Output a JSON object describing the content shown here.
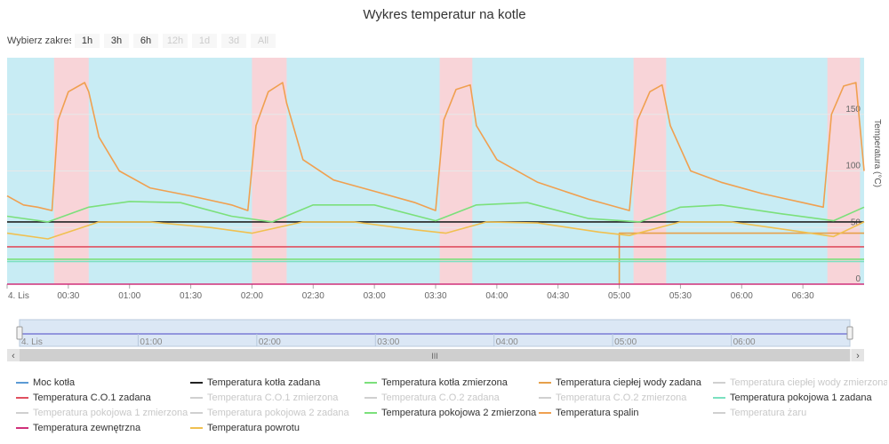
{
  "title": "Wykres temperatur na kotle",
  "range_selector": {
    "label": "Wybierz zakres",
    "buttons": [
      {
        "label": "1h",
        "enabled": true
      },
      {
        "label": "3h",
        "enabled": true
      },
      {
        "label": "6h",
        "enabled": true
      },
      {
        "label": "12h",
        "enabled": false
      },
      {
        "label": "1d",
        "enabled": false
      },
      {
        "label": "3d",
        "enabled": false
      },
      {
        "label": "All",
        "enabled": false
      }
    ]
  },
  "chart_data": {
    "type": "line",
    "x_unit": "time",
    "x_start": "00:00",
    "x_end": "07:00",
    "x_ticks": [
      "4. Lis",
      "00:30",
      "01:00",
      "01:30",
      "02:00",
      "02:30",
      "03:00",
      "03:30",
      "04:00",
      "04:30",
      "05:00",
      "05:30",
      "06:00",
      "06:30"
    ],
    "y_ticks": [
      "0",
      "50",
      "100",
      "150"
    ],
    "ylabel": "Temperatura (°C)",
    "ylim": [
      0,
      200
    ],
    "colors": {
      "plot_bg": "#c8ecf4",
      "band_bg": "#f8d4d8",
      "grid": "#e8e8e8"
    },
    "heating_bands": [
      [
        "00:23",
        "00:40"
      ],
      [
        "02:00",
        "02:17"
      ],
      [
        "03:32",
        "03:48"
      ],
      [
        "05:07",
        "05:23"
      ],
      [
        "06:42",
        "06:58"
      ]
    ],
    "series": [
      {
        "name": "Moc kotła",
        "color": "#5b9bd5",
        "visible": true,
        "points": []
      },
      {
        "name": "Temperatura kotła zadana",
        "color": "#222222",
        "visible": true,
        "points": [
          [
            "00:00",
            55
          ],
          [
            "07:00",
            55
          ]
        ]
      },
      {
        "name": "Temperatura kotła zmierzona",
        "color": "#7be07b",
        "visible": true,
        "points": [
          [
            "00:00",
            60
          ],
          [
            "00:20",
            55
          ],
          [
            "00:40",
            68
          ],
          [
            "01:00",
            73
          ],
          [
            "01:25",
            72
          ],
          [
            "01:50",
            60
          ],
          [
            "02:10",
            55
          ],
          [
            "02:30",
            70
          ],
          [
            "03:00",
            70
          ],
          [
            "03:30",
            56
          ],
          [
            "03:50",
            70
          ],
          [
            "04:15",
            72
          ],
          [
            "04:45",
            58
          ],
          [
            "05:10",
            55
          ],
          [
            "05:30",
            68
          ],
          [
            "05:50",
            70
          ],
          [
            "06:20",
            62
          ],
          [
            "06:45",
            56
          ],
          [
            "07:00",
            68
          ]
        ]
      },
      {
        "name": "Temperatura ciepłej wody zadana",
        "color": "#e6a04a",
        "visible": true,
        "points": [
          [
            "00:00",
            null
          ],
          [
            "05:00",
            null
          ],
          [
            "05:00",
            0
          ],
          [
            "05:00",
            45
          ],
          [
            "07:00",
            45
          ]
        ]
      },
      {
        "name": "Temperatura ciepłej wody zmierzona",
        "color": "#5b9bd5",
        "visible": false,
        "points": []
      },
      {
        "name": "Temperatura C.O.1 zadana",
        "color": "#e05060",
        "visible": true,
        "points": [
          [
            "00:00",
            33
          ],
          [
            "07:00",
            33
          ]
        ]
      },
      {
        "name": "Temperatura C.O.1 zmierzona",
        "color": "#999999",
        "visible": false,
        "points": []
      },
      {
        "name": "Temperatura C.O.2 zadana",
        "color": "#7be07b",
        "visible": false,
        "points": []
      },
      {
        "name": "Temperatura C.O.2 zmierzona",
        "color": "#e6a04a",
        "visible": false,
        "points": []
      },
      {
        "name": "Temperatura pokojowa 1 zadana",
        "color": "#7be0c0",
        "visible": true,
        "points": [
          [
            "00:00",
            20
          ],
          [
            "07:00",
            20
          ]
        ]
      },
      {
        "name": "Temperatura pokojowa 1 zmierzona",
        "color": "#999999",
        "visible": false,
        "points": []
      },
      {
        "name": "Temperatura pokojowa 2 zadana",
        "color": "#999999",
        "visible": false,
        "points": []
      },
      {
        "name": "Temperatura pokojowa 2 zmierzona",
        "color": "#7be07b",
        "visible": true,
        "points": [
          [
            "00:00",
            22
          ],
          [
            "07:00",
            22
          ]
        ]
      },
      {
        "name": "Temperatura spalin",
        "color": "#f0a050",
        "visible": true,
        "points": [
          [
            "00:00",
            78
          ],
          [
            "00:08",
            70
          ],
          [
            "00:15",
            68
          ],
          [
            "00:22",
            65
          ],
          [
            "00:25",
            145
          ],
          [
            "00:30",
            170
          ],
          [
            "00:38",
            178
          ],
          [
            "00:40",
            170
          ],
          [
            "00:45",
            130
          ],
          [
            "00:55",
            100
          ],
          [
            "01:10",
            85
          ],
          [
            "01:30",
            78
          ],
          [
            "01:50",
            70
          ],
          [
            "01:58",
            65
          ],
          [
            "02:02",
            140
          ],
          [
            "02:08",
            170
          ],
          [
            "02:15",
            178
          ],
          [
            "02:17",
            160
          ],
          [
            "02:25",
            110
          ],
          [
            "02:40",
            92
          ],
          [
            "03:00",
            82
          ],
          [
            "03:20",
            72
          ],
          [
            "03:30",
            65
          ],
          [
            "03:34",
            145
          ],
          [
            "03:40",
            172
          ],
          [
            "03:47",
            176
          ],
          [
            "03:50",
            140
          ],
          [
            "04:00",
            110
          ],
          [
            "04:20",
            90
          ],
          [
            "04:45",
            75
          ],
          [
            "05:05",
            65
          ],
          [
            "05:09",
            145
          ],
          [
            "05:15",
            170
          ],
          [
            "05:21",
            176
          ],
          [
            "05:25",
            140
          ],
          [
            "05:35",
            100
          ],
          [
            "05:50",
            90
          ],
          [
            "06:10",
            80
          ],
          [
            "06:30",
            72
          ],
          [
            "06:40",
            68
          ],
          [
            "06:44",
            150
          ],
          [
            "06:50",
            175
          ],
          [
            "06:56",
            178
          ],
          [
            "07:00",
            100
          ]
        ]
      },
      {
        "name": "Temperatura żaru",
        "color": "#6b6bd5",
        "visible": false,
        "points": []
      },
      {
        "name": "Temperatura zewnętrzna",
        "color": "#d0307a",
        "visible": true,
        "points": [
          [
            "00:00",
            0
          ],
          [
            "07:00",
            0
          ]
        ]
      },
      {
        "name": "Temperatura powrotu",
        "color": "#f0c050",
        "visible": true,
        "points": [
          [
            "00:00",
            45
          ],
          [
            "00:20",
            40
          ],
          [
            "00:45",
            55
          ],
          [
            "01:10",
            55
          ],
          [
            "01:40",
            50
          ],
          [
            "02:00",
            45
          ],
          [
            "02:25",
            55
          ],
          [
            "02:50",
            55
          ],
          [
            "03:20",
            48
          ],
          [
            "03:35",
            45
          ],
          [
            "03:55",
            55
          ],
          [
            "04:20",
            54
          ],
          [
            "04:50",
            46
          ],
          [
            "05:05",
            43
          ],
          [
            "05:30",
            55
          ],
          [
            "05:55",
            55
          ],
          [
            "06:30",
            46
          ],
          [
            "06:45",
            42
          ],
          [
            "07:00",
            55
          ]
        ]
      }
    ]
  },
  "navigator": {
    "x_ticks": [
      "4. Lis",
      "01:00",
      "02:00",
      "03:00",
      "04:00",
      "05:00",
      "06:00"
    ],
    "scrollbar_label": "III",
    "left_arrow": "‹",
    "right_arrow": "›"
  }
}
